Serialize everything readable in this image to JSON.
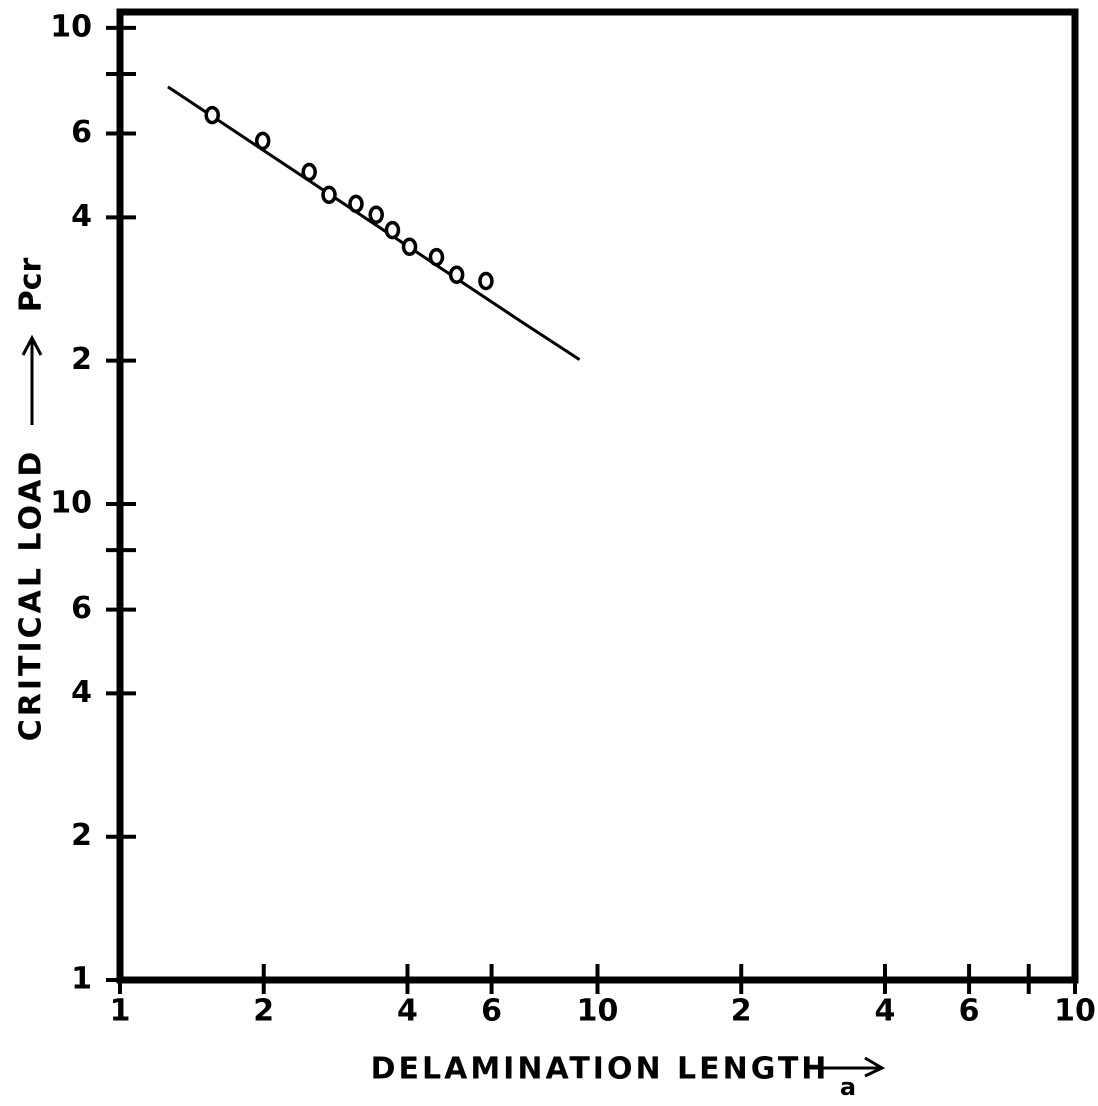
{
  "chart_data": {
    "type": "scatter",
    "xlabel": "DELAMINATION LENGTH",
    "xlabel_symbol": "a",
    "ylabel": "CRITICAL LOAD",
    "ylabel_symbol": "Pcr",
    "xscale": "log",
    "yscale": "log",
    "color": "#000000",
    "xlim": [
      1,
      100
    ],
    "ylim": [
      1,
      108
    ],
    "xticks": [
      1,
      2,
      4,
      6,
      10,
      {
        "value": 20,
        "label": "2"
      },
      {
        "value": 40,
        "label": "4"
      },
      {
        "value": 60,
        "label": "6"
      },
      {
        "value": 100,
        "label": "10"
      }
    ],
    "yticks": [
      1,
      2,
      4,
      6,
      10,
      {
        "value": 20,
        "label": "2"
      },
      {
        "value": 40,
        "label": "4"
      },
      {
        "value": 60,
        "label": "6"
      },
      {
        "value": 100,
        "label": "10"
      }
    ],
    "xminorticks": [
      80
    ],
    "yminorticks": [
      8,
      80
    ],
    "points": {
      "x": [
        1.56,
        1.99,
        2.49,
        2.74,
        3.12,
        3.44,
        3.72,
        4.04,
        4.6,
        5.07,
        5.84
      ],
      "y": [
        65.6,
        57.9,
        49.8,
        44.6,
        42.7,
        40.5,
        37.6,
        34.7,
        33.0,
        30.3,
        29.4
      ]
    },
    "fit_line": {
      "x": [
        1.26,
        6.95,
        9.17
      ],
      "y": [
        75.2,
        24.1,
        20.1
      ]
    }
  }
}
